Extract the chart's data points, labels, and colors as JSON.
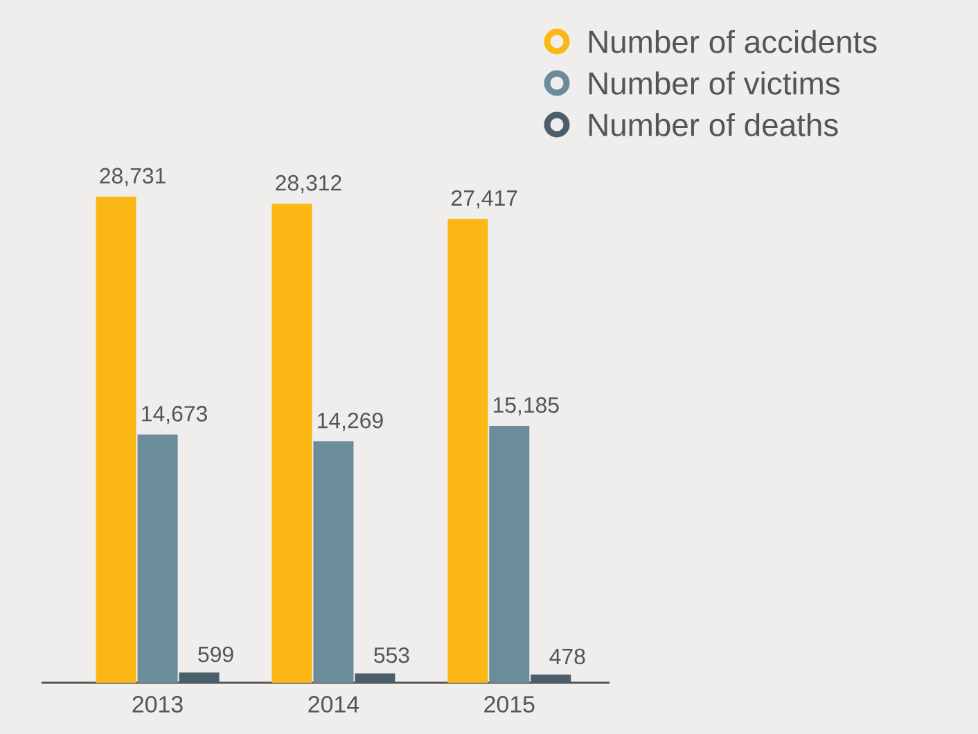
{
  "chart_data": {
    "type": "bar",
    "categories": [
      "2013",
      "2014",
      "2015"
    ],
    "legend": "top right",
    "data_labels": true,
    "series": [
      {
        "name": "Number of accidents",
        "color": "#fbb713",
        "values": [
          28731,
          28312,
          27417
        ],
        "value_labels": [
          "28,731",
          "28,312",
          "27,417"
        ]
      },
      {
        "name": "Number of victims",
        "color": "#6a8c9b",
        "values": [
          14673,
          14269,
          15185
        ],
        "value_labels": [
          "14,673",
          "14,269",
          "15,185"
        ]
      },
      {
        "name": "Number of deaths",
        "color": "#4a5f6b",
        "values": [
          599,
          553,
          478
        ],
        "value_labels": [
          "599",
          "553",
          "478"
        ]
      }
    ]
  }
}
